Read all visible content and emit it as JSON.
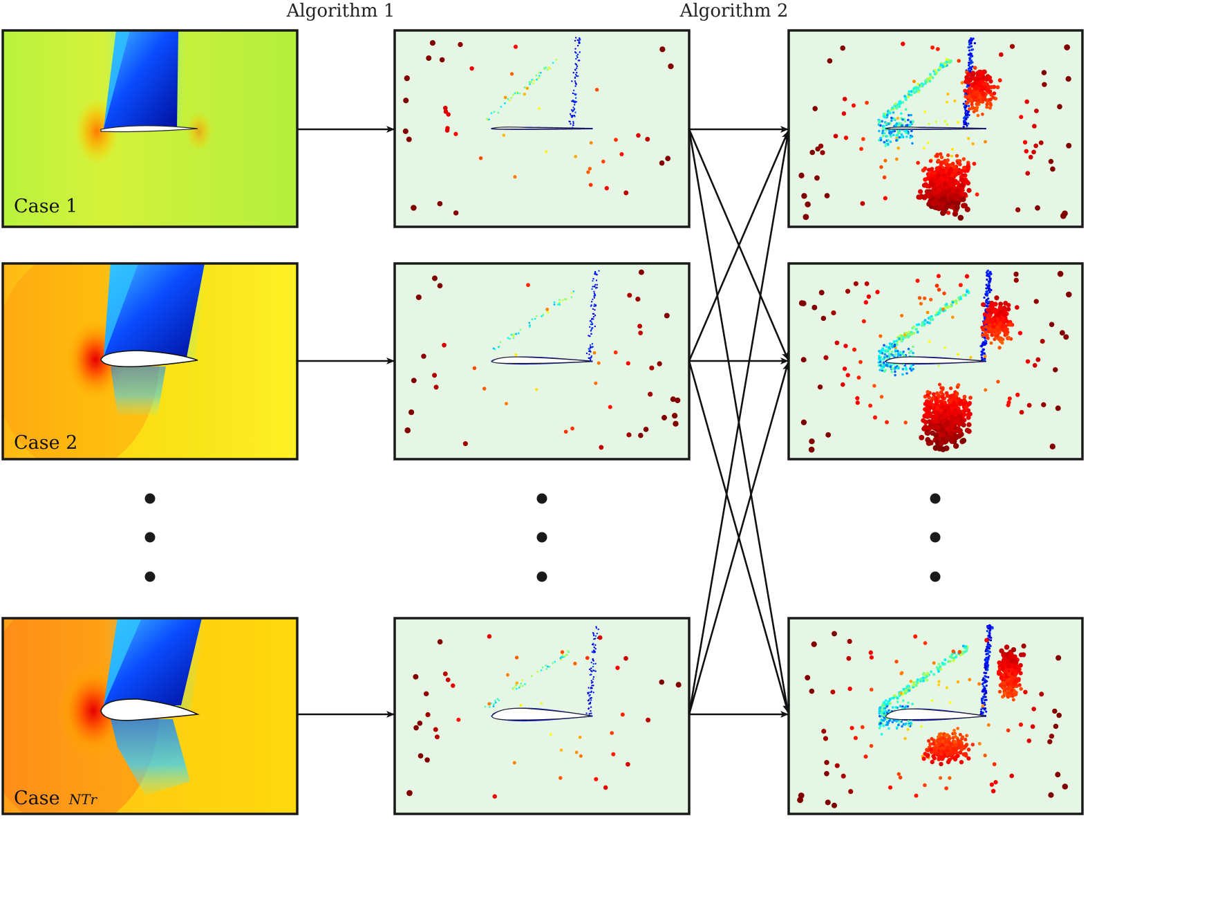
{
  "header": {
    "algorithm1_label": "Algorithm 1",
    "algorithm2_label": "Algorithm 2"
  },
  "cases": [
    {
      "label": "Case 1",
      "subscript": ""
    },
    {
      "label": "Case 2",
      "subscript": ""
    },
    {
      "label": "Case",
      "subscript": "NTr"
    }
  ],
  "colors": {
    "point_panel_bg": "#e6f6e4",
    "frame": "#1a1a1a",
    "colormap": "jet"
  },
  "icons": {
    "ellipsis": "vertical-dots-icon"
  }
}
